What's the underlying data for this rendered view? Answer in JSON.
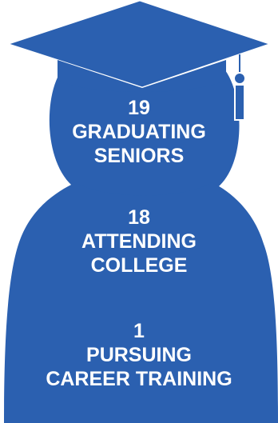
{
  "colors": {
    "figure": "#2b60b0",
    "text": "#ffffff",
    "background": "#ffffff"
  },
  "icons": [
    "graduation-cap-icon",
    "person-silhouette-icon",
    "tassel-icon"
  ],
  "stats": [
    {
      "number": "19",
      "line1": "GRADUATING",
      "line2": "SENIORS"
    },
    {
      "number": "18",
      "line1": "ATTENDING",
      "line2": "COLLEGE"
    },
    {
      "number": "1",
      "line1": "PURSUING",
      "line2": "CAREER TRAINING"
    }
  ]
}
